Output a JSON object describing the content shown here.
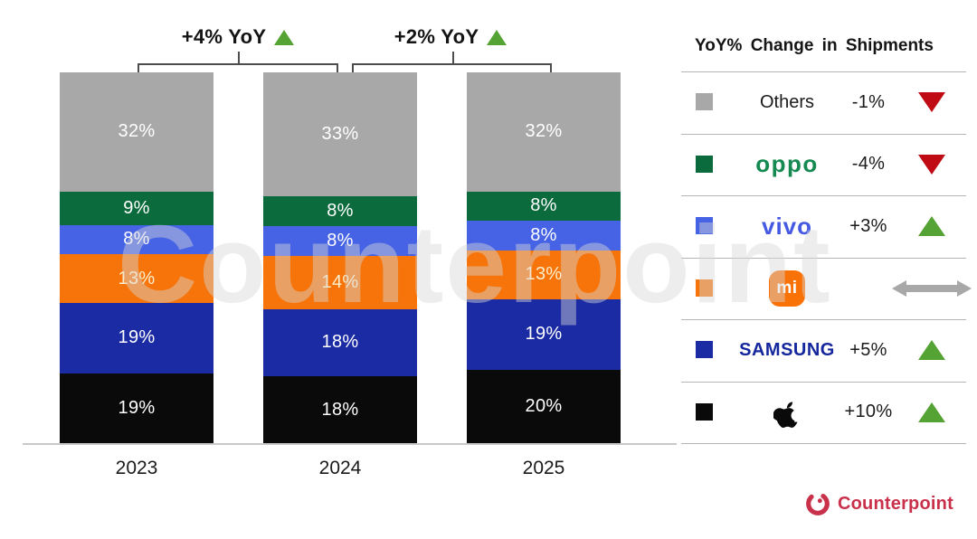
{
  "chart_data": {
    "type": "stacked_bar_100",
    "title": "",
    "categories": [
      "2023",
      "2024",
      "2025"
    ],
    "series": [
      {
        "name": "Apple",
        "color": "#0a0a0a",
        "label_color": "#ffffff",
        "values": [
          19,
          18,
          20
        ]
      },
      {
        "name": "Samsung",
        "color": "#1b2ba4",
        "label_color": "#ffffff",
        "values": [
          19,
          18,
          19
        ]
      },
      {
        "name": "Xiaomi",
        "color": "#f67409",
        "label_color": "#fdeecd",
        "values": [
          13,
          14,
          13
        ]
      },
      {
        "name": "vivo",
        "color": "#4663e6",
        "label_color": "#ffffff",
        "values": [
          8,
          8,
          8
        ]
      },
      {
        "name": "OPPO",
        "color": "#0b6b3d",
        "label_color": "#ffffff",
        "values": [
          9,
          8,
          8
        ]
      },
      {
        "name": "Others",
        "color": "#a8a8a8",
        "label_color": "#ffffff",
        "values": [
          32,
          33,
          32
        ]
      }
    ],
    "value_suffix": "%",
    "growth_annotations": [
      {
        "label": "+4% YoY",
        "direction": "up",
        "between": [
          "2023",
          "2024"
        ]
      },
      {
        "label": "+2% YoY",
        "direction": "up",
        "between": [
          "2024",
          "2025"
        ]
      }
    ],
    "legend_position": "right",
    "grid": false
  },
  "legend": {
    "title": "YoY% Change in Shipments",
    "rows": [
      {
        "brand": "Others",
        "logo": "text",
        "swatch": "#a8a8a8",
        "change": "-1%",
        "direction": "down"
      },
      {
        "brand": "oppo",
        "logo": "oppo-logo",
        "swatch": "#0b6b3d",
        "change": "-4%",
        "direction": "down"
      },
      {
        "brand": "vivo",
        "logo": "vivo-logo",
        "swatch": "#4663e6",
        "change": "+3%",
        "direction": "up"
      },
      {
        "brand": "mi",
        "logo": "mi-logo",
        "swatch": "#f67409",
        "change": "",
        "direction": "flat"
      },
      {
        "brand": "SAMSUNG",
        "logo": "samsung-logo",
        "swatch": "#1b2ba4",
        "change": "+5%",
        "direction": "up"
      },
      {
        "brand": "Apple",
        "logo": "apple-logo",
        "swatch": "#0a0a0a",
        "change": "+10%",
        "direction": "up"
      }
    ]
  },
  "watermark": "Counterpoint",
  "footer": {
    "brand": "Counterpoint"
  },
  "colors": {
    "up_arrow": "#55a334",
    "down_arrow": "#c00b15",
    "flat_arrow": "#a8a8a8",
    "bracket": "#4d4d4d",
    "axis": "#c9c9c9",
    "divider": "#b5b5b5",
    "footer_brand": "#c9304a"
  }
}
